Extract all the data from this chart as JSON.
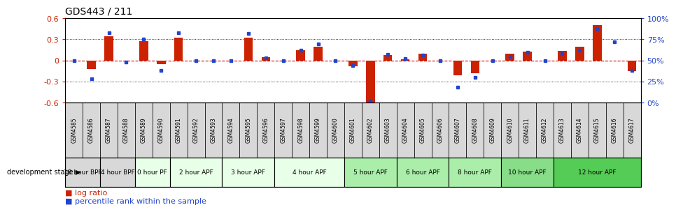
{
  "title": "GDS443 / 211",
  "samples": [
    "GSM4585",
    "GSM4586",
    "GSM4587",
    "GSM4588",
    "GSM4589",
    "GSM4590",
    "GSM4591",
    "GSM4592",
    "GSM4593",
    "GSM4594",
    "GSM4595",
    "GSM4596",
    "GSM4597",
    "GSM4598",
    "GSM4599",
    "GSM4600",
    "GSM4601",
    "GSM4602",
    "GSM4603",
    "GSM4604",
    "GSM4605",
    "GSM4606",
    "GSM4607",
    "GSM4608",
    "GSM4609",
    "GSM4610",
    "GSM4611",
    "GSM4612",
    "GSM4613",
    "GSM4614",
    "GSM4615",
    "GSM4616",
    "GSM4617"
  ],
  "log_ratio": [
    0.0,
    -0.12,
    0.34,
    0.0,
    0.28,
    -0.05,
    0.32,
    0.0,
    0.0,
    0.0,
    0.32,
    0.05,
    0.0,
    0.15,
    0.2,
    0.0,
    -0.08,
    -0.62,
    0.08,
    0.02,
    0.1,
    0.0,
    -0.21,
    -0.18,
    0.0,
    0.1,
    0.13,
    0.0,
    0.14,
    0.2,
    0.5,
    0.0,
    -0.15
  ],
  "percentile": [
    50,
    28,
    83,
    48,
    75,
    38,
    83,
    50,
    50,
    50,
    82,
    53,
    50,
    62,
    70,
    50,
    44,
    2,
    57,
    52,
    56,
    50,
    18,
    30,
    50,
    55,
    60,
    50,
    58,
    62,
    88,
    72,
    38
  ],
  "stages": [
    {
      "label": "18 hour BPF",
      "start": 0,
      "end": 2,
      "color": "#d8d8d8"
    },
    {
      "label": "4 hour BPF",
      "start": 2,
      "end": 4,
      "color": "#d8d8d8"
    },
    {
      "label": "0 hour PF",
      "start": 4,
      "end": 6,
      "color": "#e8ffe8"
    },
    {
      "label": "2 hour APF",
      "start": 6,
      "end": 9,
      "color": "#e8ffe8"
    },
    {
      "label": "3 hour APF",
      "start": 9,
      "end": 12,
      "color": "#e8ffe8"
    },
    {
      "label": "4 hour APF",
      "start": 12,
      "end": 16,
      "color": "#e8ffe8"
    },
    {
      "label": "5 hour APF",
      "start": 16,
      "end": 19,
      "color": "#aaeeaa"
    },
    {
      "label": "6 hour APF",
      "start": 19,
      "end": 22,
      "color": "#aaeeaa"
    },
    {
      "label": "8 hour APF",
      "start": 22,
      "end": 25,
      "color": "#aaeeaa"
    },
    {
      "label": "10 hour APF",
      "start": 25,
      "end": 28,
      "color": "#88dd88"
    },
    {
      "label": "12 hour APF",
      "start": 28,
      "end": 33,
      "color": "#55cc55"
    }
  ],
  "ylim": [
    -0.6,
    0.6
  ],
  "yticks_left": [
    -0.6,
    -0.3,
    0,
    0.3,
    0.6
  ],
  "right_yticks_pct": [
    0,
    25,
    50,
    75,
    100
  ],
  "bar_color": "#cc2200",
  "dot_color": "#2244cc",
  "zero_line_color": "#cc0000",
  "bg_color": "#ffffff"
}
